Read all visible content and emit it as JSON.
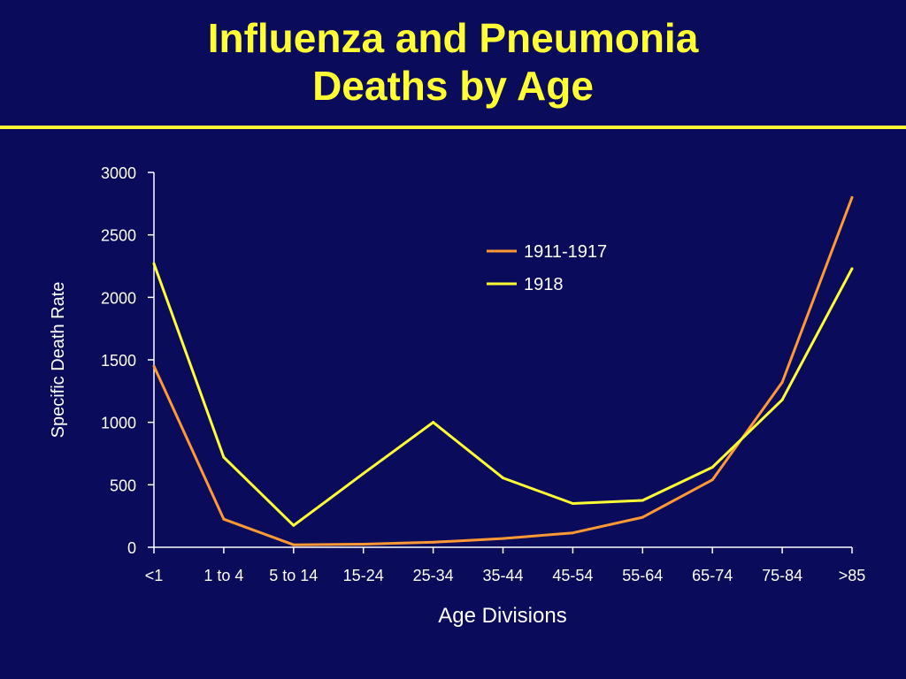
{
  "slide": {
    "title_line1": "Influenza and Pneumonia",
    "title_line2": "Deaths by Age",
    "background_color": "#0b0b5c",
    "title_color": "#ffff33"
  },
  "chart_data": {
    "type": "line",
    "title": "Influenza and Pneumonia Deaths by Age",
    "xlabel": "Age Divisions",
    "ylabel": "Specific Death Rate",
    "categories": [
      "<1",
      "1 to 4",
      "5 to 14",
      "15-24",
      "25-34",
      "35-44",
      "45-54",
      "55-64",
      "65-74",
      "75-84",
      ">85"
    ],
    "ylim": [
      0,
      3000
    ],
    "yticks": [
      0,
      500,
      1000,
      1500,
      2000,
      2500,
      3000
    ],
    "grid": false,
    "legend_position": "top-right",
    "series": [
      {
        "name": "1911-1917",
        "color": "#ff9933",
        "values": [
          1450,
          225,
          20,
          25,
          40,
          70,
          115,
          240,
          540,
          1320,
          2800
        ]
      },
      {
        "name": "1918",
        "color": "#ffff33",
        "values": [
          2270,
          720,
          175,
          590,
          1000,
          555,
          350,
          375,
          640,
          1180,
          2230
        ]
      }
    ]
  }
}
